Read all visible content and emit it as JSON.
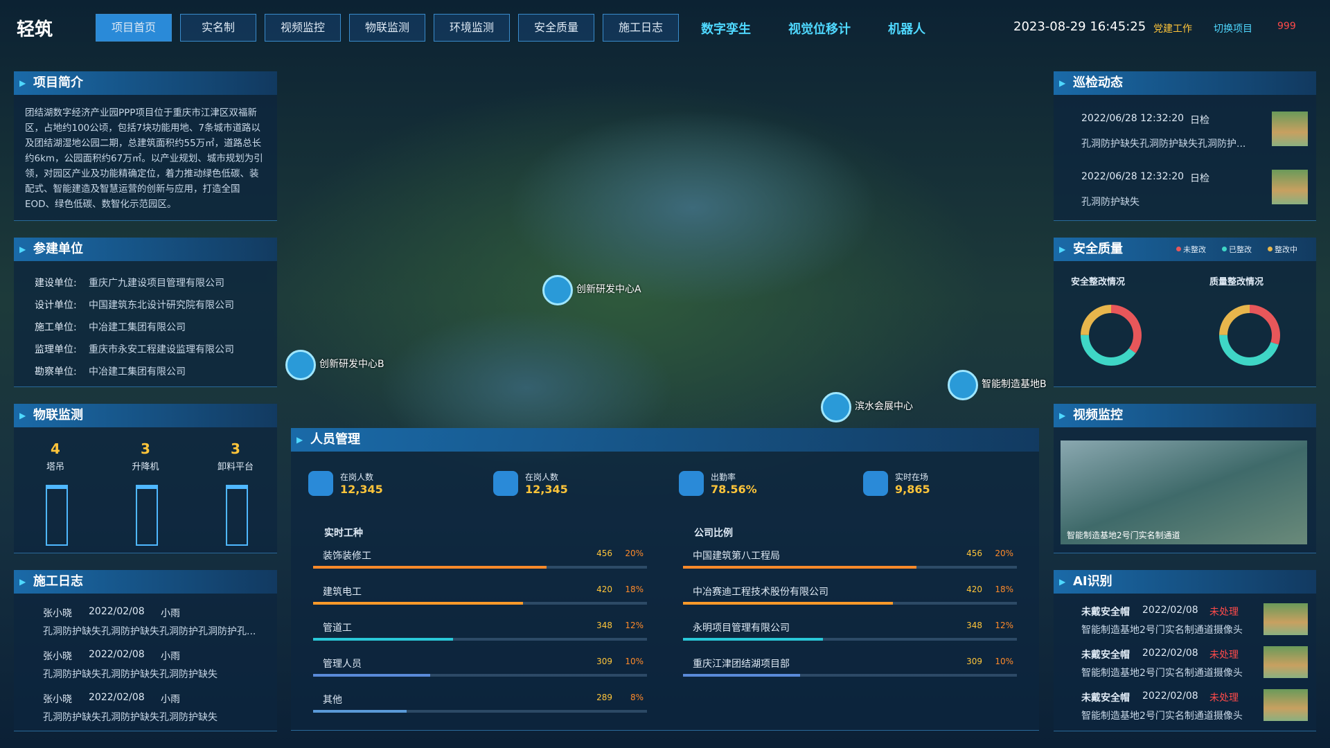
{
  "header": {
    "logo": "轻筑",
    "nav": [
      "项目首页",
      "实名制",
      "视频监控",
      "物联监测",
      "环境监测",
      "安全质量",
      "施工日志"
    ],
    "links": [
      "数字孪生",
      "视觉位移计",
      "机器人"
    ],
    "datetime": "2023-08-29 16:45:25",
    "actions": [
      "党建工作",
      "切换项目"
    ],
    "alert": 999
  },
  "project_intro": {
    "title": "项目简介",
    "text": "团结湖数字经济产业园PPP项目位于重庆市江津区双福新区，占地约100公顷，包括7块功能用地、7条城市道路以及团结湖湿地公园二期，总建筑面积约55万㎡，道路总长约6km，公园面积约67万㎡。以产业规划、城市规划为引领，对园区产业及功能精确定位，着力推动绿色低碳、装配式、智能建造及智慧运营的创新与应用，打造全国EOD、绿色低碳、数智化示范园区。"
  },
  "participants": {
    "title": "参建单位",
    "rows": [
      {
        "label": "建设单位:",
        "value": "重庆广九建设项目管理有限公司"
      },
      {
        "label": "设计单位:",
        "value": "中国建筑东北设计研究院有限公司"
      },
      {
        "label": "施工单位:",
        "value": "中冶建工集团有限公司"
      },
      {
        "label": "监理单位:",
        "value": "重庆市永安工程建设监理有限公司"
      },
      {
        "label": "勘察单位:",
        "value": "中冶建工集团有限公司"
      }
    ]
  },
  "iot": {
    "title": "物联监测",
    "items": [
      {
        "count": 4,
        "label": "塔吊"
      },
      {
        "count": 3,
        "label": "升降机"
      },
      {
        "count": 3,
        "label": "卸料平台"
      }
    ]
  },
  "construction_log": {
    "title": "施工日志",
    "entries": [
      {
        "name": "张小晓",
        "date": "2022/02/08",
        "weather": "小雨",
        "text": "孔洞防护缺失孔洞防护缺失孔洞防护孔洞防护孔..."
      },
      {
        "name": "张小晓",
        "date": "2022/02/08",
        "weather": "小雨",
        "text": "孔洞防护缺失孔洞防护缺失孔洞防护缺失"
      },
      {
        "name": "张小晓",
        "date": "2022/02/08",
        "weather": "小雨",
        "text": "孔洞防护缺失孔洞防护缺失孔洞防护缺失"
      }
    ]
  },
  "map_markers": [
    "创新研发中心A",
    "创新研发中心B",
    "滨水会展中心",
    "智能制造基地B"
  ],
  "personnel": {
    "title": "人员管理",
    "stats": [
      {
        "label": "在岗人数",
        "value": "12,345"
      },
      {
        "label": "在岗人数",
        "value": "12,345"
      },
      {
        "label": "出勤率",
        "value": "78.56%"
      },
      {
        "label": "实时在场",
        "value": "9,865"
      }
    ],
    "trades": {
      "title": "实时工种",
      "rows": [
        {
          "name": "装饰装修工",
          "count": 456,
          "percent": 20,
          "percent_label": "20%"
        },
        {
          "name": "建筑电工",
          "count": 420,
          "percent": 18,
          "percent_label": "18%"
        },
        {
          "name": "管道工",
          "count": 348,
          "percent": 12,
          "percent_label": "12%"
        },
        {
          "name": "管理人员",
          "count": 309,
          "percent": 10,
          "percent_label": "10%"
        },
        {
          "name": "其他",
          "count": 289,
          "percent": 8,
          "percent_label": "8%"
        }
      ]
    },
    "companies": {
      "title": "公司比例",
      "rows": [
        {
          "name": "中国建筑第八工程局",
          "count": 456,
          "percent": 20,
          "percent_label": "20%"
        },
        {
          "name": "中冶赛迪工程技术股份有限公司",
          "count": 420,
          "percent": 18,
          "percent_label": "18%"
        },
        {
          "name": "永明项目管理有限公司",
          "count": 348,
          "percent": 12,
          "percent_label": "12%"
        },
        {
          "name": "重庆江津团结湖项目部",
          "count": 309,
          "percent": 10,
          "percent_label": "10%"
        }
      ]
    }
  },
  "patrol": {
    "title": "巡检动态",
    "entries": [
      {
        "time": "2022/06/28 12:32:20",
        "type": "日检",
        "text": "孔洞防护缺失孔洞防护缺失孔洞防护..."
      },
      {
        "time": "2022/06/28 12:32:20",
        "type": "日检",
        "text": "孔洞防护缺失"
      }
    ]
  },
  "safety": {
    "title": "安全质量",
    "legend": [
      {
        "name": "未整改",
        "color": "#e8575a"
      },
      {
        "name": "已整改",
        "color": "#3fd6c6"
      },
      {
        "name": "整改中",
        "color": "#e8b64c"
      }
    ],
    "charts": [
      {
        "title": "安全整改情况",
        "values": [
          35,
          40,
          25
        ]
      },
      {
        "title": "质量整改情况",
        "values": [
          30,
          45,
          25
        ]
      }
    ]
  },
  "video": {
    "title": "视频监控",
    "caption": "智能制造基地2号门实名制通道"
  },
  "ai": {
    "title": "AI识别",
    "entries": [
      {
        "type": "未戴安全帽",
        "date": "2022/02/08",
        "status": "未处理",
        "location": "智能制造基地2号门实名制通道摄像头"
      },
      {
        "type": "未戴安全帽",
        "date": "2022/02/08",
        "status": "未处理",
        "location": "智能制造基地2号门实名制通道摄像头"
      },
      {
        "type": "未戴安全帽",
        "date": "2022/02/08",
        "status": "未处理",
        "location": "智能制造基地2号门实名制通道摄像头"
      }
    ]
  }
}
